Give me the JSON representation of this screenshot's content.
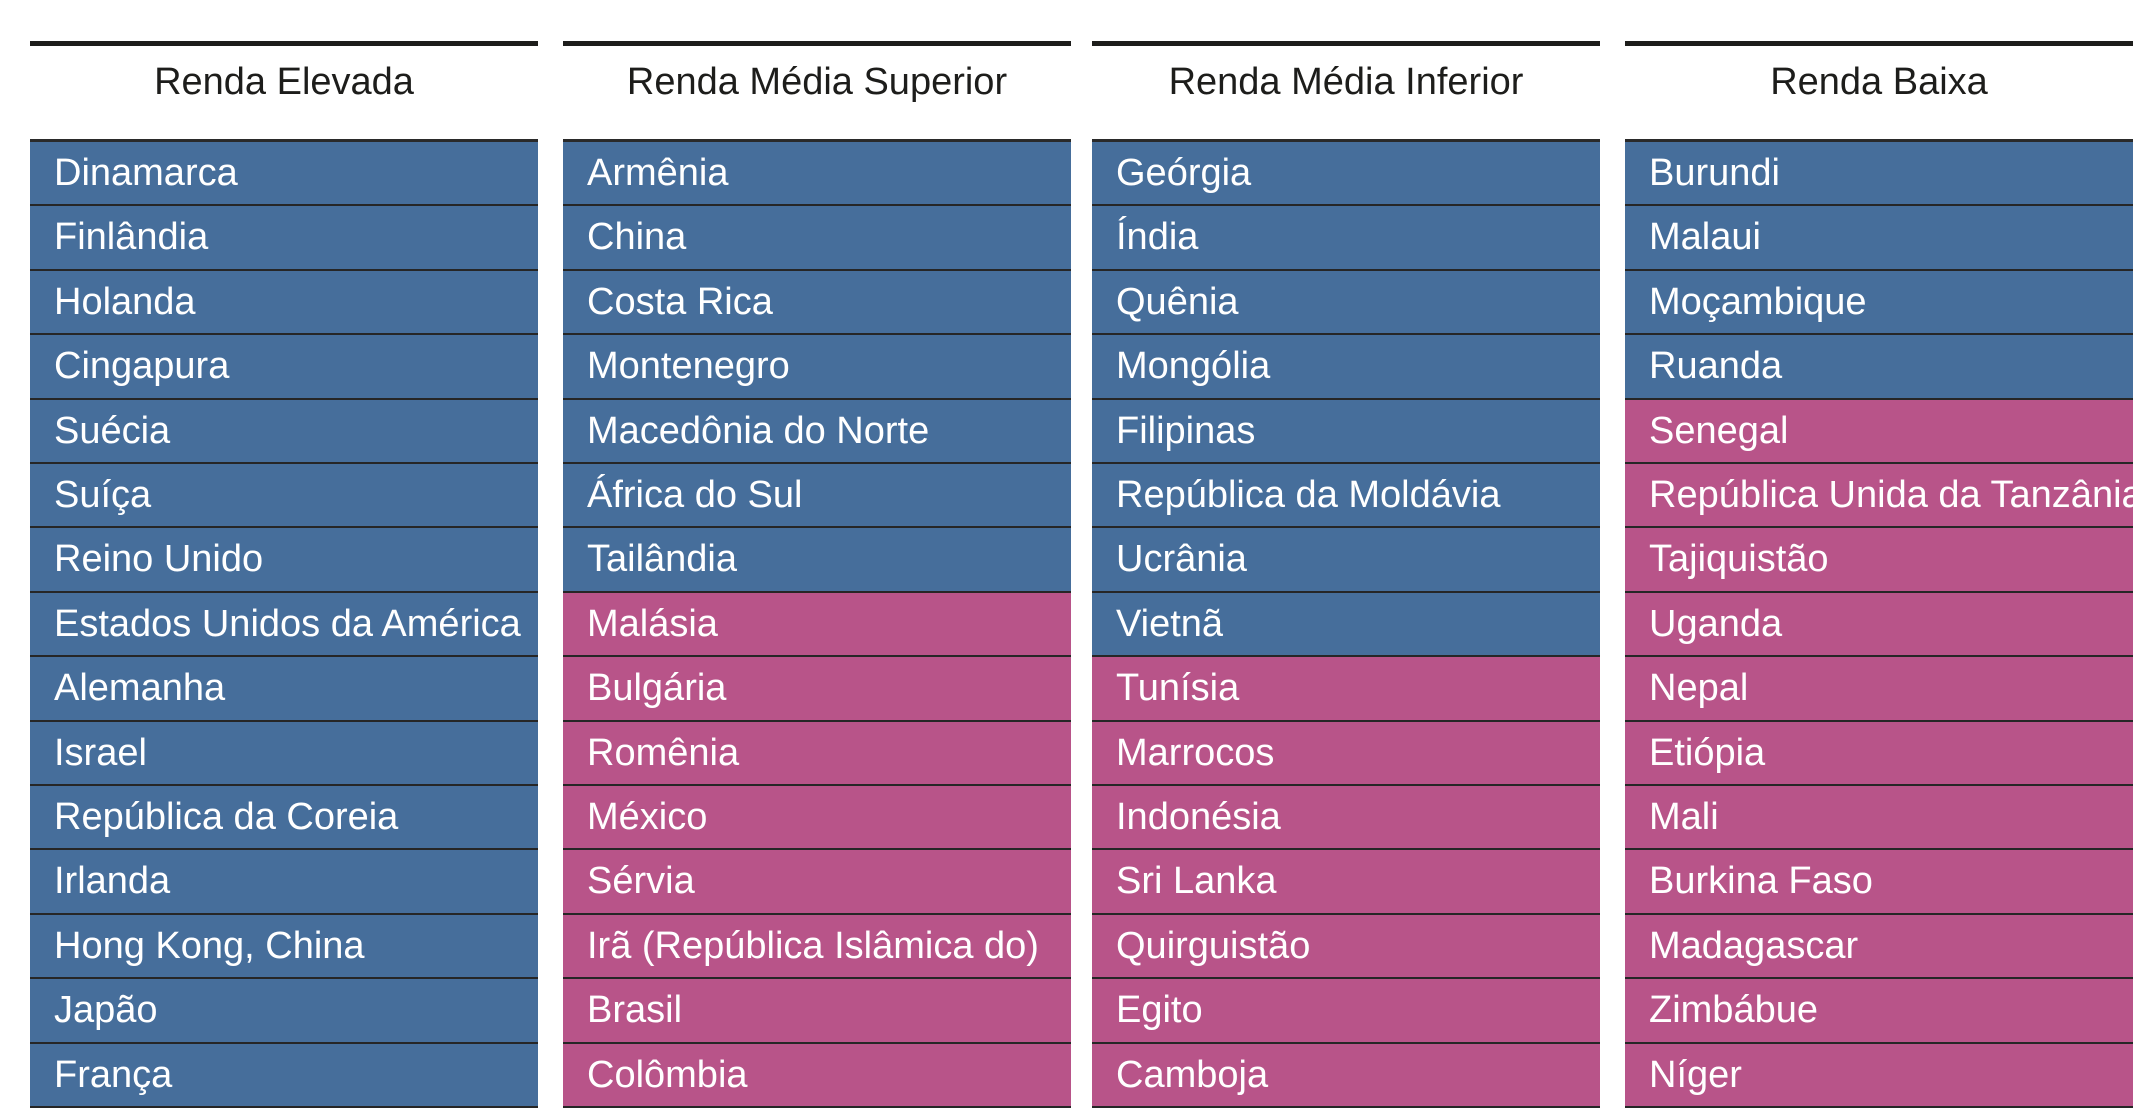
{
  "colors": {
    "blue": "#466e9b",
    "pink": "#b85489",
    "rule": "#1d1d1b"
  },
  "columns": [
    {
      "header": "Renda Elevada",
      "rows": [
        {
          "label": "Dinamarca",
          "group": "blue"
        },
        {
          "label": "Finlândia",
          "group": "blue"
        },
        {
          "label": "Holanda",
          "group": "blue"
        },
        {
          "label": "Cingapura",
          "group": "blue"
        },
        {
          "label": "Suécia",
          "group": "blue"
        },
        {
          "label": "Suíça",
          "group": "blue"
        },
        {
          "label": "Reino Unido",
          "group": "blue"
        },
        {
          "label": "Estados Unidos da América",
          "group": "blue"
        },
        {
          "label": "Alemanha",
          "group": "blue"
        },
        {
          "label": "Israel",
          "group": "blue"
        },
        {
          "label": "República da Coreia",
          "group": "blue"
        },
        {
          "label": "Irlanda",
          "group": "blue"
        },
        {
          "label": "Hong Kong, China",
          "group": "blue"
        },
        {
          "label": "Japão",
          "group": "blue"
        },
        {
          "label": "França",
          "group": "blue"
        }
      ]
    },
    {
      "header": "Renda Média Superior",
      "rows": [
        {
          "label": "Armênia",
          "group": "blue"
        },
        {
          "label": "China",
          "group": "blue"
        },
        {
          "label": "Costa Rica",
          "group": "blue"
        },
        {
          "label": "Montenegro",
          "group": "blue"
        },
        {
          "label": "Macedônia do Norte",
          "group": "blue"
        },
        {
          "label": "África do Sul",
          "group": "blue"
        },
        {
          "label": "Tailândia",
          "group": "blue"
        },
        {
          "label": "Malásia",
          "group": "pink"
        },
        {
          "label": "Bulgária",
          "group": "pink"
        },
        {
          "label": "Romênia",
          "group": "pink"
        },
        {
          "label": "México",
          "group": "pink"
        },
        {
          "label": "Sérvia",
          "group": "pink"
        },
        {
          "label": "Irã (República Islâmica do)",
          "group": "pink"
        },
        {
          "label": "Brasil",
          "group": "pink"
        },
        {
          "label": "Colômbia",
          "group": "pink"
        }
      ]
    },
    {
      "header": "Renda Média Inferior",
      "rows": [
        {
          "label": "Geórgia",
          "group": "blue"
        },
        {
          "label": "Índia",
          "group": "blue"
        },
        {
          "label": "Quênia",
          "group": "blue"
        },
        {
          "label": "Mongólia",
          "group": "blue"
        },
        {
          "label": "Filipinas",
          "group": "blue"
        },
        {
          "label": "República da Moldávia",
          "group": "blue"
        },
        {
          "label": "Ucrânia",
          "group": "blue"
        },
        {
          "label": "Vietnã",
          "group": "blue"
        },
        {
          "label": "Tunísia",
          "group": "pink"
        },
        {
          "label": "Marrocos",
          "group": "pink"
        },
        {
          "label": "Indonésia",
          "group": "pink"
        },
        {
          "label": "Sri Lanka",
          "group": "pink"
        },
        {
          "label": "Quirguistão",
          "group": "pink"
        },
        {
          "label": "Egito",
          "group": "pink"
        },
        {
          "label": "Camboja",
          "group": "pink"
        }
      ]
    },
    {
      "header": "Renda Baixa",
      "rows": [
        {
          "label": "Burundi",
          "group": "blue"
        },
        {
          "label": "Malaui",
          "group": "blue"
        },
        {
          "label": "Moçambique",
          "group": "blue"
        },
        {
          "label": "Ruanda",
          "group": "blue"
        },
        {
          "label": "Senegal",
          "group": "pink"
        },
        {
          "label": "República Unida da Tanzânia",
          "group": "pink"
        },
        {
          "label": "Tajiquistão",
          "group": "pink"
        },
        {
          "label": "Uganda",
          "group": "pink"
        },
        {
          "label": "Nepal",
          "group": "pink"
        },
        {
          "label": "Etiópia",
          "group": "pink"
        },
        {
          "label": "Mali",
          "group": "pink"
        },
        {
          "label": "Burkina Faso",
          "group": "pink"
        },
        {
          "label": "Madagascar",
          "group": "pink"
        },
        {
          "label": "Zimbábue",
          "group": "pink"
        },
        {
          "label": "Níger",
          "group": "pink"
        }
      ]
    }
  ]
}
